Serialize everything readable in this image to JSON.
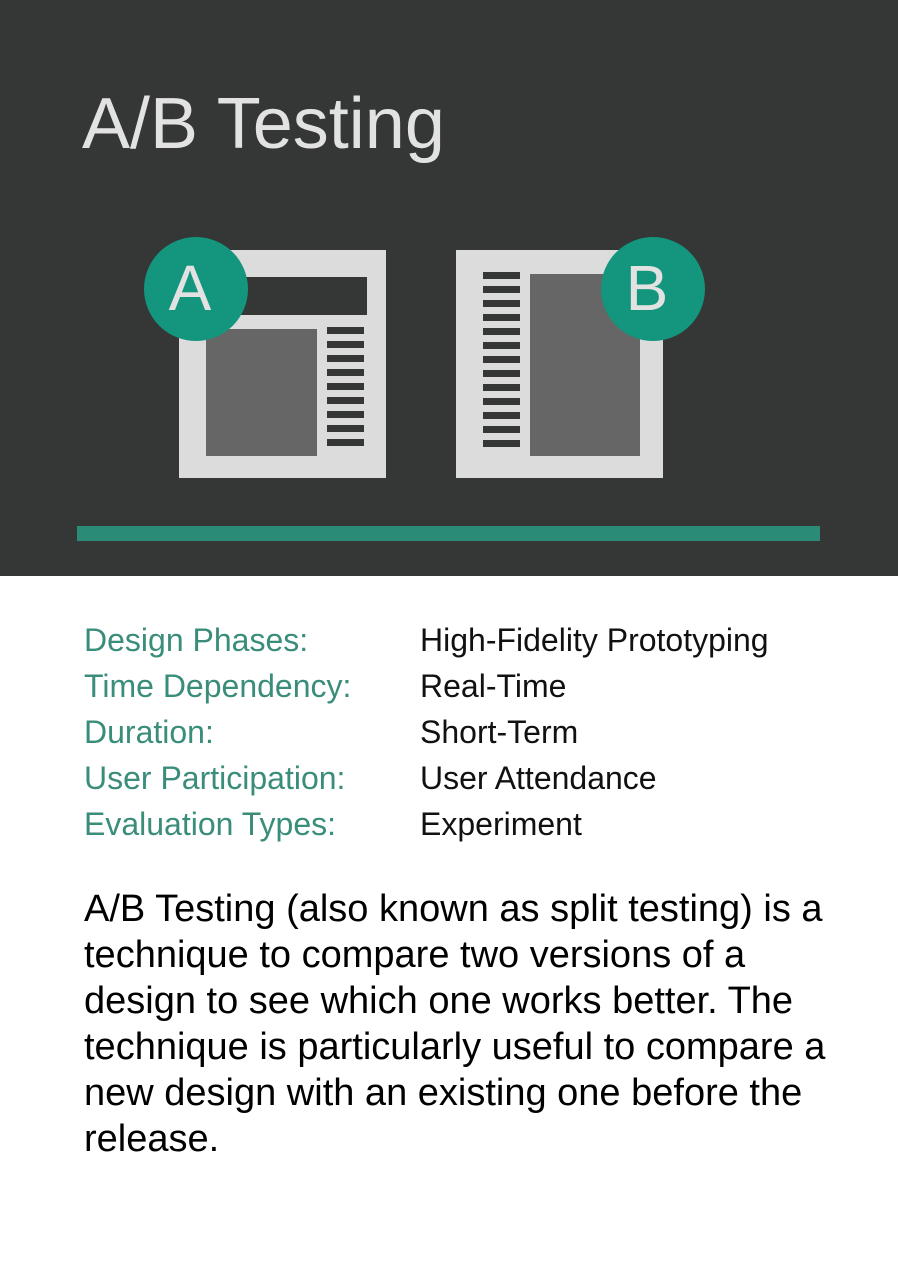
{
  "card": {
    "title": "A/B Testing",
    "variant_a_label": "A",
    "variant_b_label": "B",
    "properties": [
      {
        "key": "Design Phases:",
        "value": "High-Fidelity Prototyping"
      },
      {
        "key": "Time Dependency:",
        "value": "Real-Time"
      },
      {
        "key": "Duration:",
        "value": "Short-Term"
      },
      {
        "key": "User Participation:",
        "value": "User Attendance"
      },
      {
        "key": "Evaluation Types:",
        "value": "Experiment"
      }
    ],
    "description": "A/B Testing (also known as split testing) is a technique to compare two versions of a design to see which one works better. The technique is particularly useful to compare a new design with an existing one before the release."
  },
  "colors": {
    "header_background": "#353636",
    "accent": "#13967d",
    "divider": "#2a8c76",
    "label_text": "#3a8d7a",
    "frame": "#dcdcdc",
    "content_block": "#666666"
  }
}
